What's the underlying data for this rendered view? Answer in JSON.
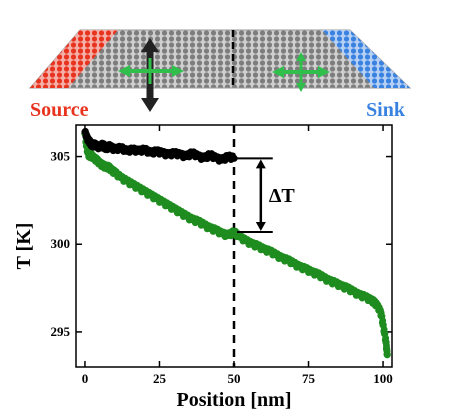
{
  "header": {
    "source_label": "Source",
    "sink_label": "Sink",
    "colors": {
      "source": "#e8341f",
      "sink": "#3a82e0",
      "lattice": "#8a8a8a",
      "arrow_green": "#2fbf4a",
      "arrow_dark": "#222222"
    }
  },
  "chart_data": {
    "type": "scatter",
    "xlabel": "Position [nm]",
    "ylabel": "T [K]",
    "xlim": [
      -3,
      103
    ],
    "ylim": [
      293,
      306.8
    ],
    "x_ticks": [
      "0",
      "25",
      "50",
      "75",
      "100"
    ],
    "y_ticks": [
      "295",
      "300",
      "305"
    ],
    "x_tick_values": [
      0,
      25,
      50,
      75,
      100
    ],
    "y_tick_values": [
      295,
      300,
      305
    ],
    "grid": false,
    "legend": "none",
    "annotations": {
      "delta_label": "ΔT",
      "midline_x": 50,
      "delta_arrow_x": 59,
      "delta_top_y": 304.9,
      "delta_bottom_y": 300.7
    },
    "series": [
      {
        "color": "#000000",
        "marker": "circle",
        "x": [
          0,
          0.6,
          1.2,
          1.8,
          2.4,
          3,
          4,
          5,
          6,
          7,
          8,
          9,
          10,
          12,
          14,
          16,
          18,
          20,
          22,
          24,
          26,
          28,
          30,
          32,
          34,
          36,
          38,
          40,
          42,
          44,
          46,
          48,
          50
        ],
        "y": [
          306.4,
          306.1,
          305.9,
          305.8,
          305.6,
          305.7,
          305.6,
          305.5,
          305.7,
          305.4,
          305.6,
          305.5,
          305.4,
          305.5,
          305.3,
          305.4,
          305.3,
          305.4,
          305.2,
          305.3,
          305.2,
          305.1,
          305.2,
          305.1,
          305.0,
          305.2,
          305.0,
          304.9,
          305.1,
          304.9,
          304.8,
          305.0,
          304.9
        ]
      },
      {
        "color": "#1e8c1e",
        "marker": "circle",
        "x": [
          0,
          0.5,
          1,
          1.5,
          2,
          3,
          4,
          5,
          6,
          7,
          8,
          9,
          10,
          12,
          14,
          16,
          18,
          20,
          22,
          24,
          26,
          28,
          30,
          32,
          34,
          36,
          38,
          40,
          42,
          44,
          46,
          48,
          50,
          52,
          54,
          56,
          58,
          60,
          62,
          64,
          66,
          68,
          70,
          72,
          74,
          76,
          78,
          80,
          82,
          84,
          86,
          88,
          90,
          92,
          94,
          96,
          97,
          98,
          99,
          99.5,
          100,
          100.5,
          101,
          101.2,
          101.4
        ],
        "y": [
          306.3,
          305.6,
          305.2,
          305.0,
          305.1,
          304.9,
          304.8,
          304.6,
          304.5,
          304.4,
          304.4,
          304.2,
          304.1,
          303.8,
          303.6,
          303.4,
          303.2,
          303.0,
          302.8,
          302.6,
          302.4,
          302.2,
          302.0,
          301.8,
          301.6,
          301.4,
          301.3,
          301.1,
          300.9,
          300.8,
          300.6,
          300.5,
          300.7,
          300.4,
          300.2,
          300.0,
          299.9,
          299.7,
          299.6,
          299.4,
          299.2,
          299.1,
          298.9,
          298.7,
          298.6,
          298.4,
          298.3,
          298.1,
          297.9,
          297.8,
          297.6,
          297.5,
          297.3,
          297.1,
          297.0,
          296.8,
          296.7,
          296.5,
          296.2,
          295.9,
          295.4,
          294.9,
          294.4,
          294.0,
          293.7
        ]
      }
    ]
  }
}
